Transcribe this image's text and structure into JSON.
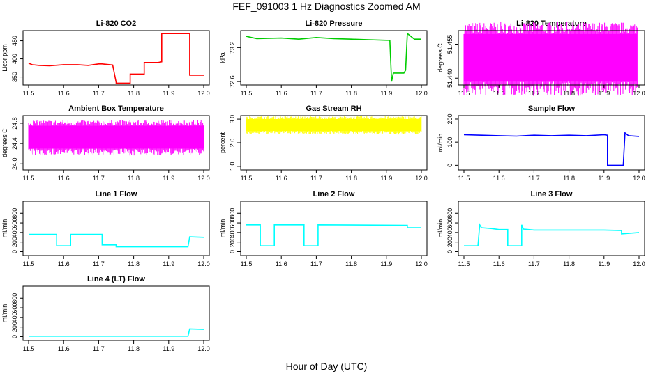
{
  "figure": {
    "title": "FEF_091003  1 Hz Diagnostics Zoomed AM",
    "xlabel": "Hour of Day (UTC)"
  },
  "chart_data": [
    {
      "type": "line",
      "title": "Li-820 CO2",
      "ylabel": "Licor ppm",
      "color": "#ff0000",
      "xlim": [
        11.5,
        12.0
      ],
      "xticks": [
        "11.5",
        "11.6",
        "11.7",
        "11.8",
        "11.9",
        "12.0"
      ],
      "ylim": [
        328,
        478
      ],
      "yticks": [
        {
          "v": 350,
          "label": "350"
        },
        {
          "v": 400,
          "label": "400"
        },
        {
          "v": 450,
          "label": "450"
        }
      ],
      "series": [
        {
          "x": [
            11.5,
            11.51,
            11.53,
            11.56,
            11.6,
            11.64,
            11.67,
            11.7,
            11.71,
            11.74,
            11.75,
            11.75,
            11.79,
            11.79,
            11.83,
            11.83,
            11.87,
            11.88,
            11.88,
            11.95,
            11.96,
            11.96,
            12.0
          ],
          "y": [
            388,
            384,
            382,
            381,
            384,
            384,
            382,
            386,
            386,
            383,
            335,
            333,
            333,
            358,
            358,
            390,
            390,
            392,
            470,
            470,
            470,
            355,
            355
          ]
        }
      ]
    },
    {
      "type": "line",
      "title": "Li-820 Pressure",
      "ylabel": "kPa",
      "color": "#00cc00",
      "xlim": [
        11.5,
        12.0
      ],
      "xticks": [
        "11.5",
        "11.6",
        "11.7",
        "11.8",
        "11.9",
        "12.0"
      ],
      "ylim": [
        72.54,
        73.5
      ],
      "yticks": [
        {
          "v": 72.6,
          "label": "72.6"
        },
        {
          "v": 73.2,
          "label": "73.2"
        }
      ],
      "series": [
        {
          "x": [
            11.5,
            11.53,
            11.6,
            11.65,
            11.7,
            11.75,
            11.8,
            11.85,
            11.9,
            11.91,
            11.915,
            11.92,
            11.95,
            11.955,
            11.96,
            11.97,
            11.98,
            12.0
          ],
          "y": [
            73.4,
            73.36,
            73.37,
            73.35,
            73.38,
            73.36,
            73.35,
            73.34,
            73.33,
            73.33,
            72.6,
            72.75,
            72.75,
            72.8,
            73.45,
            73.4,
            73.35,
            73.35
          ]
        }
      ]
    },
    {
      "type": "line",
      "title": "Li-820 Temperature",
      "ylabel": "degrees C",
      "color": "#ff00ff",
      "xlim": [
        11.5,
        12.0
      ],
      "xticks": [
        "11.5",
        "11.6",
        "11.7",
        "11.8",
        "11.9",
        "12.0"
      ],
      "ylim": [
        51.437,
        51.461
      ],
      "yticks": [
        {
          "v": 51.44,
          "label": "51.440"
        },
        {
          "v": 51.455,
          "label": "51.455"
        }
      ],
      "band": {
        "x": [
          11.5,
          11.995
        ],
        "y": [
          51.4385,
          51.4595
        ]
      }
    },
    {
      "type": "line",
      "title": "Ambient Box Temperature",
      "ylabel": "degrees C",
      "color": "#ff00ff",
      "xlim": [
        11.5,
        12.0
      ],
      "xticks": [
        "11.5",
        "11.6",
        "11.7",
        "11.8",
        "11.9",
        "12.0"
      ],
      "ylim": [
        23.88,
        24.95
      ],
      "yticks": [
        {
          "v": 24.0,
          "label": "24.0"
        },
        {
          "v": 24.4,
          "label": "24.4"
        },
        {
          "v": 24.8,
          "label": "24.8"
        }
      ],
      "band": {
        "x": [
          11.5,
          12.0
        ],
        "y": [
          24.3,
          24.75
        ]
      }
    },
    {
      "type": "line",
      "title": "Gas Stream RH",
      "ylabel": "percent",
      "color": "#ffff00",
      "xlim": [
        11.5,
        12.0
      ],
      "xticks": [
        "11.5",
        "11.6",
        "11.7",
        "11.8",
        "11.9",
        "12.0"
      ],
      "ylim": [
        0.85,
        3.15
      ],
      "yticks": [
        {
          "v": 1.0,
          "label": "1.0"
        },
        {
          "v": 2.0,
          "label": "2.0"
        },
        {
          "v": 3.0,
          "label": "3.0"
        }
      ],
      "band": {
        "x": [
          11.5,
          12.0
        ],
        "y": [
          2.5,
          3.0
        ]
      }
    },
    {
      "type": "line",
      "title": "Sample Flow",
      "ylabel": "ml/min",
      "color": "#0000ff",
      "xlim": [
        11.5,
        12.0
      ],
      "xticks": [
        "11.5",
        "11.6",
        "11.7",
        "11.8",
        "11.9",
        "12.0"
      ],
      "ylim": [
        -20,
        215
      ],
      "yticks": [
        {
          "v": 0,
          "label": "0"
        },
        {
          "v": 100,
          "label": "100"
        },
        {
          "v": 200,
          "label": "200"
        }
      ],
      "series": [
        {
          "x": [
            11.5,
            11.55,
            11.6,
            11.65,
            11.7,
            11.75,
            11.8,
            11.85,
            11.9,
            11.91,
            11.91,
            11.95,
            11.955,
            11.96,
            11.97,
            12.0
          ],
          "y": [
            132,
            130,
            128,
            126,
            130,
            128,
            130,
            128,
            132,
            130,
            0,
            0,
            0,
            140,
            128,
            125
          ]
        }
      ]
    },
    {
      "type": "line",
      "title": "Line 1 Flow",
      "ylabel": "ml/min",
      "color": "#00ffff",
      "xlim": [
        11.5,
        12.0
      ],
      "xticks": [
        "11.5",
        "11.6",
        "11.7",
        "11.8",
        "11.9",
        "12.0"
      ],
      "ylim": [
        -80,
        1050
      ],
      "yticks": [
        {
          "v": 0,
          "label": "0"
        },
        {
          "v": 200,
          "label": "200"
        },
        {
          "v": 400,
          "label": "400"
        },
        {
          "v": 600,
          "label": "600"
        },
        {
          "v": 800,
          "label": "800"
        }
      ],
      "series": [
        {
          "x": [
            11.5,
            11.58,
            11.58,
            11.62,
            11.62,
            11.71,
            11.71,
            11.75,
            11.75,
            11.955,
            11.96,
            12.0
          ],
          "y": [
            360,
            360,
            120,
            120,
            360,
            360,
            140,
            140,
            100,
            100,
            310,
            300
          ]
        }
      ]
    },
    {
      "type": "line",
      "title": "Line 2 Flow",
      "ylabel": "ml/min",
      "color": "#00ffff",
      "xlim": [
        11.5,
        12.0
      ],
      "xticks": [
        "11.5",
        "11.6",
        "11.7",
        "11.8",
        "11.9",
        "12.0"
      ],
      "ylim": [
        -80,
        1050
      ],
      "yticks": [
        {
          "v": 0,
          "label": "0"
        },
        {
          "v": 200,
          "label": "200"
        },
        {
          "v": 400,
          "label": "400"
        },
        {
          "v": 600,
          "label": "600"
        },
        {
          "v": 800,
          "label": "800"
        }
      ],
      "series": [
        {
          "x": [
            11.5,
            11.54,
            11.54,
            11.58,
            11.58,
            11.665,
            11.665,
            11.705,
            11.705,
            11.96,
            11.96,
            12.0
          ],
          "y": [
            560,
            560,
            120,
            120,
            560,
            560,
            120,
            120,
            560,
            550,
            500,
            500
          ]
        }
      ]
    },
    {
      "type": "line",
      "title": "Line 3 Flow",
      "ylabel": "ml/min",
      "color": "#00ffff",
      "xlim": [
        11.5,
        12.0
      ],
      "xticks": [
        "11.5",
        "11.6",
        "11.7",
        "11.8",
        "11.9",
        "12.0"
      ],
      "ylim": [
        -80,
        1050
      ],
      "yticks": [
        {
          "v": 0,
          "label": "0"
        },
        {
          "v": 200,
          "label": "200"
        },
        {
          "v": 400,
          "label": "400"
        },
        {
          "v": 600,
          "label": "600"
        },
        {
          "v": 800,
          "label": "800"
        }
      ],
      "series": [
        {
          "x": [
            11.5,
            11.54,
            11.545,
            11.55,
            11.58,
            11.6,
            11.625,
            11.625,
            11.665,
            11.665,
            11.67,
            11.7,
            11.9,
            11.95,
            11.95,
            12.0
          ],
          "y": [
            120,
            120,
            560,
            500,
            480,
            460,
            460,
            120,
            120,
            560,
            470,
            450,
            450,
            440,
            370,
            400
          ]
        }
      ]
    },
    {
      "type": "line",
      "title": "Line 4 (LT) Flow",
      "ylabel": "ml/min",
      "color": "#00ffff",
      "xlim": [
        11.5,
        12.0
      ],
      "xticks": [
        "11.5",
        "11.6",
        "11.7",
        "11.8",
        "11.9",
        "12.0"
      ],
      "ylim": [
        -80,
        1050
      ],
      "yticks": [
        {
          "v": 0,
          "label": "0"
        },
        {
          "v": 200,
          "label": "200"
        },
        {
          "v": 400,
          "label": "400"
        },
        {
          "v": 600,
          "label": "600"
        },
        {
          "v": 800,
          "label": "800"
        }
      ],
      "series": [
        {
          "x": [
            11.5,
            11.955,
            11.96,
            12.0
          ],
          "y": [
            10,
            10,
            160,
            150
          ]
        }
      ]
    }
  ]
}
